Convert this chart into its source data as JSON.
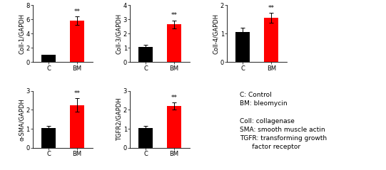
{
  "panels": [
    {
      "ylabel": "Coll-1/GAPDH",
      "ylim": [
        0,
        8
      ],
      "yticks": [
        0,
        2,
        4,
        6,
        8
      ],
      "values": [
        1.0,
        5.8
      ],
      "errors": [
        0.08,
        0.6
      ],
      "categories": [
        "C",
        "BM"
      ]
    },
    {
      "ylabel": "Coll-3/GAPDH",
      "ylim": [
        0,
        4
      ],
      "yticks": [
        0,
        1,
        2,
        3,
        4
      ],
      "values": [
        1.05,
        2.65
      ],
      "errors": [
        0.15,
        0.28
      ],
      "categories": [
        "C",
        "BM"
      ]
    },
    {
      "ylabel": "Coll-4/GAPDH",
      "ylim": [
        0,
        2
      ],
      "yticks": [
        0,
        1,
        2
      ],
      "values": [
        1.05,
        1.55
      ],
      "errors": [
        0.15,
        0.18
      ],
      "categories": [
        "C",
        "BM"
      ]
    },
    {
      "ylabel": "α-SMA/GAPDH",
      "ylim": [
        0,
        3
      ],
      "yticks": [
        0,
        1,
        2,
        3
      ],
      "values": [
        1.05,
        2.25
      ],
      "errors": [
        0.1,
        0.35
      ],
      "categories": [
        "C",
        "BM"
      ]
    },
    {
      "ylabel": "TGFR2/GAPDH",
      "ylim": [
        0,
        3
      ],
      "yticks": [
        0,
        1,
        2,
        3
      ],
      "values": [
        1.05,
        2.2
      ],
      "errors": [
        0.1,
        0.18
      ],
      "categories": [
        "C",
        "BM"
      ]
    }
  ],
  "bar_colors": [
    "#000000",
    "#ff0000"
  ],
  "sig_marker": "**",
  "background_color": "#ffffff",
  "error_cap_size": 2,
  "bar_width": 0.5,
  "fontsize": 6,
  "tick_fontsize": 6,
  "legend_lines": [
    "C: Control",
    "BM: bleomycin",
    "",
    "Coll: collagenase",
    "SMA: smooth muscle actin",
    "TGFR: transforming growth",
    "      factor receptor"
  ],
  "legend_fontsize": 6.5
}
